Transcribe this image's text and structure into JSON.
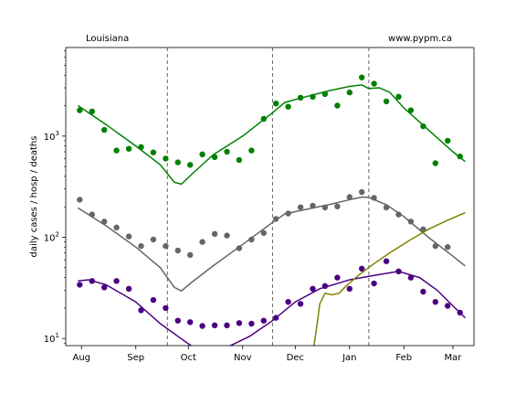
{
  "chart_data": {
    "type": "scatter",
    "title_left": "Louisiana",
    "title_right": "www.pypm.ca",
    "xlabel": "",
    "ylabel": "daily cases / hosp / deaths",
    "y_scale": "log",
    "ylim": [
      8.5,
      7500
    ],
    "x_range": [
      "2020-07-23",
      "2021-03-13"
    ],
    "x_ticks": [
      {
        "label": "Aug",
        "date": "2020-08-01"
      },
      {
        "label": "Sep",
        "date": "2020-09-01"
      },
      {
        "label": "Oct",
        "date": "2020-10-01"
      },
      {
        "label": "Nov",
        "date": "2020-11-01"
      },
      {
        "label": "Dec",
        "date": "2020-12-01"
      },
      {
        "label": "Jan",
        "date": "2021-01-01"
      },
      {
        "label": "Feb",
        "date": "2021-02-01"
      },
      {
        "label": "Mar",
        "date": "2021-03-01"
      }
    ],
    "y_ticks": [
      {
        "label": "10",
        "sup": "1",
        "value": 10
      },
      {
        "label": "10",
        "sup": "2",
        "value": 100
      },
      {
        "label": "10",
        "sup": "3",
        "value": 1000
      }
    ],
    "vlines": [
      "2020-09-19",
      "2020-11-18",
      "2021-01-12"
    ],
    "grid": false,
    "series": [
      {
        "color": "#008000",
        "points": [
          {
            "x": "2020-07-31",
            "y": 1800
          },
          {
            "x": "2020-08-07",
            "y": 1750
          },
          {
            "x": "2020-08-14",
            "y": 1150
          },
          {
            "x": "2020-08-21",
            "y": 720
          },
          {
            "x": "2020-08-28",
            "y": 750
          },
          {
            "x": "2020-09-04",
            "y": 780
          },
          {
            "x": "2020-09-11",
            "y": 690
          },
          {
            "x": "2020-09-18",
            "y": 600
          },
          {
            "x": "2020-09-25",
            "y": 550
          },
          {
            "x": "2020-10-02",
            "y": 520
          },
          {
            "x": "2020-10-09",
            "y": 660
          },
          {
            "x": "2020-10-16",
            "y": 620
          },
          {
            "x": "2020-10-23",
            "y": 700
          },
          {
            "x": "2020-10-30",
            "y": 580
          },
          {
            "x": "2020-11-06",
            "y": 720
          },
          {
            "x": "2020-11-13",
            "y": 1480
          },
          {
            "x": "2020-11-20",
            "y": 2100
          },
          {
            "x": "2020-11-27",
            "y": 1950
          },
          {
            "x": "2020-12-04",
            "y": 2400
          },
          {
            "x": "2020-12-11",
            "y": 2450
          },
          {
            "x": "2020-12-18",
            "y": 2600
          },
          {
            "x": "2020-12-25",
            "y": 2000
          },
          {
            "x": "2021-01-01",
            "y": 2700
          },
          {
            "x": "2021-01-08",
            "y": 3800
          },
          {
            "x": "2021-01-15",
            "y": 3300
          },
          {
            "x": "2021-01-22",
            "y": 2200
          },
          {
            "x": "2021-01-29",
            "y": 2450
          },
          {
            "x": "2021-02-05",
            "y": 1800
          },
          {
            "x": "2021-02-12",
            "y": 1250
          },
          {
            "x": "2021-02-19",
            "y": 540
          },
          {
            "x": "2021-02-26",
            "y": 900
          },
          {
            "x": "2021-03-05",
            "y": 630
          }
        ],
        "line": [
          {
            "x": "2020-07-30",
            "y": 2000
          },
          {
            "x": "2020-08-15",
            "y": 1300
          },
          {
            "x": "2020-09-01",
            "y": 800
          },
          {
            "x": "2020-09-15",
            "y": 520
          },
          {
            "x": "2020-09-23",
            "y": 350
          },
          {
            "x": "2020-09-27",
            "y": 335
          },
          {
            "x": "2020-10-03",
            "y": 420
          },
          {
            "x": "2020-10-15",
            "y": 650
          },
          {
            "x": "2020-11-01",
            "y": 1000
          },
          {
            "x": "2020-11-18",
            "y": 1700
          },
          {
            "x": "2020-11-25",
            "y": 2150
          },
          {
            "x": "2020-12-05",
            "y": 2400
          },
          {
            "x": "2020-12-20",
            "y": 2800
          },
          {
            "x": "2021-01-01",
            "y": 3100
          },
          {
            "x": "2021-01-08",
            "y": 3200
          },
          {
            "x": "2021-01-12",
            "y": 2950
          },
          {
            "x": "2021-01-18",
            "y": 3000
          },
          {
            "x": "2021-01-24",
            "y": 2700
          },
          {
            "x": "2021-02-01",
            "y": 1900
          },
          {
            "x": "2021-02-15",
            "y": 1150
          },
          {
            "x": "2021-03-01",
            "y": 700
          },
          {
            "x": "2021-03-08",
            "y": 560
          }
        ]
      },
      {
        "color": "#666666",
        "points": [
          {
            "x": "2020-07-31",
            "y": 235
          },
          {
            "x": "2020-08-07",
            "y": 168
          },
          {
            "x": "2020-08-14",
            "y": 143
          },
          {
            "x": "2020-08-21",
            "y": 125
          },
          {
            "x": "2020-08-28",
            "y": 102
          },
          {
            "x": "2020-09-04",
            "y": 82
          },
          {
            "x": "2020-09-11",
            "y": 95
          },
          {
            "x": "2020-09-18",
            "y": 82
          },
          {
            "x": "2020-09-25",
            "y": 74
          },
          {
            "x": "2020-10-02",
            "y": 67
          },
          {
            "x": "2020-10-09",
            "y": 90
          },
          {
            "x": "2020-10-16",
            "y": 108
          },
          {
            "x": "2020-10-23",
            "y": 104
          },
          {
            "x": "2020-10-30",
            "y": 78
          },
          {
            "x": "2020-11-06",
            "y": 95
          },
          {
            "x": "2020-11-13",
            "y": 110
          },
          {
            "x": "2020-11-20",
            "y": 152
          },
          {
            "x": "2020-11-27",
            "y": 172
          },
          {
            "x": "2020-12-04",
            "y": 198
          },
          {
            "x": "2020-12-11",
            "y": 205
          },
          {
            "x": "2020-12-18",
            "y": 197
          },
          {
            "x": "2020-12-25",
            "y": 202
          },
          {
            "x": "2021-01-01",
            "y": 250
          },
          {
            "x": "2021-01-08",
            "y": 280
          },
          {
            "x": "2021-01-15",
            "y": 245
          },
          {
            "x": "2021-01-22",
            "y": 197
          },
          {
            "x": "2021-01-29",
            "y": 168
          },
          {
            "x": "2021-02-05",
            "y": 143
          },
          {
            "x": "2021-02-12",
            "y": 120
          },
          {
            "x": "2021-02-19",
            "y": 82
          },
          {
            "x": "2021-02-26",
            "y": 80
          }
        ],
        "line": [
          {
            "x": "2020-07-30",
            "y": 195
          },
          {
            "x": "2020-08-15",
            "y": 130
          },
          {
            "x": "2020-09-01",
            "y": 80
          },
          {
            "x": "2020-09-15",
            "y": 50
          },
          {
            "x": "2020-09-23",
            "y": 32
          },
          {
            "x": "2020-09-27",
            "y": 29.5
          },
          {
            "x": "2020-10-03",
            "y": 36
          },
          {
            "x": "2020-10-15",
            "y": 52
          },
          {
            "x": "2020-11-01",
            "y": 85
          },
          {
            "x": "2020-11-18",
            "y": 140
          },
          {
            "x": "2020-11-25",
            "y": 170
          },
          {
            "x": "2020-12-05",
            "y": 185
          },
          {
            "x": "2020-12-20",
            "y": 210
          },
          {
            "x": "2021-01-01",
            "y": 235
          },
          {
            "x": "2021-01-08",
            "y": 250
          },
          {
            "x": "2021-01-12",
            "y": 248
          },
          {
            "x": "2021-01-22",
            "y": 210
          },
          {
            "x": "2021-02-01",
            "y": 160
          },
          {
            "x": "2021-02-15",
            "y": 100
          },
          {
            "x": "2021-03-01",
            "y": 65
          },
          {
            "x": "2021-03-08",
            "y": 52
          }
        ]
      },
      {
        "color": "#4b0082",
        "points": [
          {
            "x": "2020-07-31",
            "y": 34
          },
          {
            "x": "2020-08-07",
            "y": 37
          },
          {
            "x": "2020-08-14",
            "y": 32
          },
          {
            "x": "2020-08-21",
            "y": 37
          },
          {
            "x": "2020-08-28",
            "y": 31
          },
          {
            "x": "2020-09-04",
            "y": 19
          },
          {
            "x": "2020-09-11",
            "y": 24
          },
          {
            "x": "2020-09-18",
            "y": 20
          },
          {
            "x": "2020-09-25",
            "y": 15
          },
          {
            "x": "2020-10-02",
            "y": 14.5
          },
          {
            "x": "2020-10-09",
            "y": 13.3
          },
          {
            "x": "2020-10-16",
            "y": 13.5
          },
          {
            "x": "2020-10-23",
            "y": 13.5
          },
          {
            "x": "2020-10-30",
            "y": 14.2
          },
          {
            "x": "2020-11-06",
            "y": 14
          },
          {
            "x": "2020-11-13",
            "y": 15
          },
          {
            "x": "2020-11-20",
            "y": 16
          },
          {
            "x": "2020-11-27",
            "y": 23
          },
          {
            "x": "2020-12-04",
            "y": 22
          },
          {
            "x": "2020-12-11",
            "y": 31
          },
          {
            "x": "2020-12-18",
            "y": 33
          },
          {
            "x": "2020-12-25",
            "y": 40
          },
          {
            "x": "2021-01-01",
            "y": 31
          },
          {
            "x": "2021-01-08",
            "y": 49
          },
          {
            "x": "2021-01-15",
            "y": 35
          },
          {
            "x": "2021-01-22",
            "y": 58
          },
          {
            "x": "2021-01-29",
            "y": 46
          },
          {
            "x": "2021-02-05",
            "y": 40
          },
          {
            "x": "2021-02-12",
            "y": 29
          },
          {
            "x": "2021-02-19",
            "y": 23
          },
          {
            "x": "2021-02-26",
            "y": 21
          },
          {
            "x": "2021-03-05",
            "y": 18
          }
        ],
        "line": [
          {
            "x": "2020-07-30",
            "y": 37
          },
          {
            "x": "2020-08-05",
            "y": 38
          },
          {
            "x": "2020-08-15",
            "y": 34
          },
          {
            "x": "2020-09-01",
            "y": 23
          },
          {
            "x": "2020-09-15",
            "y": 14
          },
          {
            "x": "2020-09-25",
            "y": 10.5
          },
          {
            "x": "2020-10-02",
            "y": 8.6
          },
          {
            "x": "2020-10-05",
            "y": 8.0
          },
          {
            "x": "2020-10-15",
            "y": 7.6
          },
          {
            "x": "2020-10-25",
            "y": 8.5
          },
          {
            "x": "2020-11-05",
            "y": 10.5
          },
          {
            "x": "2020-11-18",
            "y": 15
          },
          {
            "x": "2020-12-01",
            "y": 23
          },
          {
            "x": "2020-12-15",
            "y": 31
          },
          {
            "x": "2021-01-01",
            "y": 38
          },
          {
            "x": "2021-01-15",
            "y": 42
          },
          {
            "x": "2021-01-29",
            "y": 46
          },
          {
            "x": "2021-02-10",
            "y": 40
          },
          {
            "x": "2021-02-20",
            "y": 30
          },
          {
            "x": "2021-03-01",
            "y": 21
          },
          {
            "x": "2021-03-08",
            "y": 16
          }
        ]
      },
      {
        "color": "#808000",
        "points": [],
        "line": [
          {
            "x": "2020-12-11",
            "y": 7.0
          },
          {
            "x": "2020-12-13",
            "y": 12
          },
          {
            "x": "2020-12-15",
            "y": 22
          },
          {
            "x": "2020-12-18",
            "y": 28
          },
          {
            "x": "2020-12-22",
            "y": 27
          },
          {
            "x": "2020-12-26",
            "y": 28
          },
          {
            "x": "2020-12-30",
            "y": 33
          },
          {
            "x": "2021-01-06",
            "y": 42
          },
          {
            "x": "2021-01-15",
            "y": 55
          },
          {
            "x": "2021-01-25",
            "y": 72
          },
          {
            "x": "2021-02-05",
            "y": 95
          },
          {
            "x": "2021-02-15",
            "y": 120
          },
          {
            "x": "2021-02-25",
            "y": 145
          },
          {
            "x": "2021-03-08",
            "y": 175
          }
        ]
      }
    ]
  }
}
